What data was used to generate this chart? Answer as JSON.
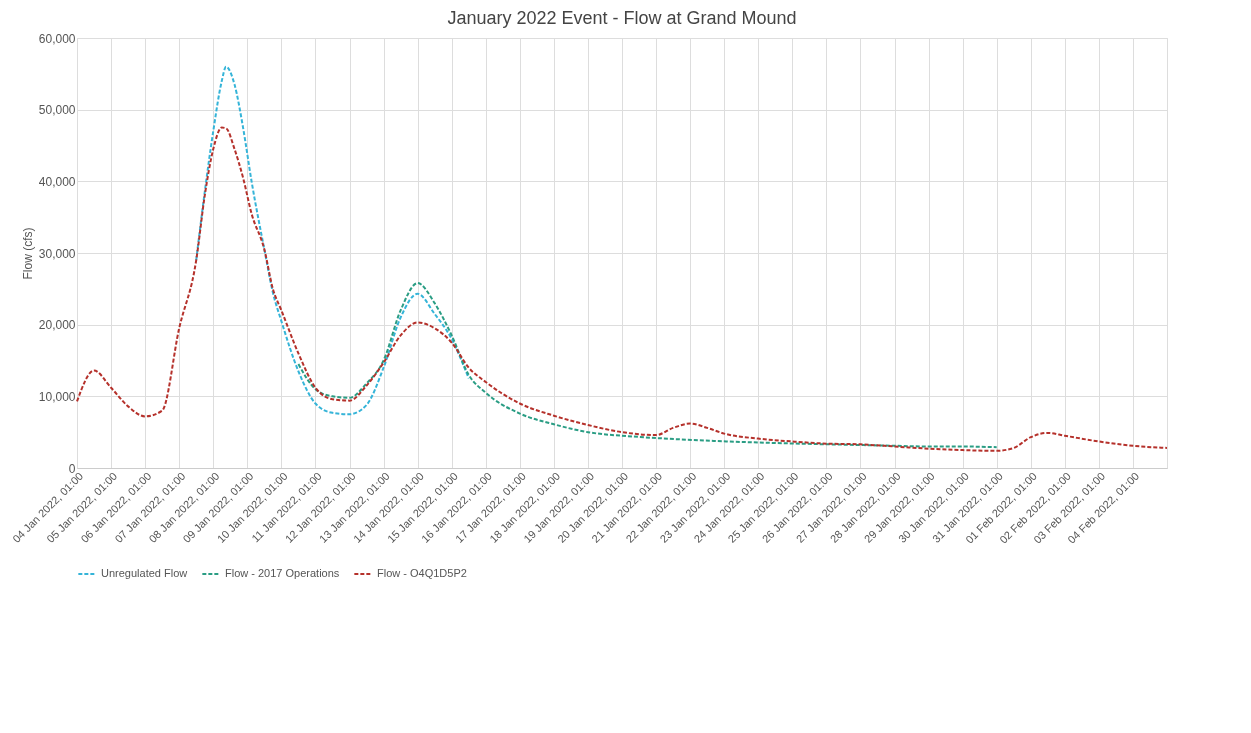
{
  "chart_data": {
    "type": "line",
    "title": "January 2022 Event - Flow at Grand Mound",
    "ylabel": "Flow (cfs)",
    "x": [
      "2022-01-04T01:00",
      "2022-01-04T13:00",
      "2022-01-05T01:00",
      "2022-01-05T13:00",
      "2022-01-06T01:00",
      "2022-01-06T13:00",
      "2022-01-07T01:00",
      "2022-01-07T13:00",
      "2022-01-07T19:00",
      "2022-01-08T01:00",
      "2022-01-08T07:00",
      "2022-01-08T10:00",
      "2022-01-08T16:00",
      "2022-01-08T22:00",
      "2022-01-09T04:00",
      "2022-01-09T13:00",
      "2022-01-09T19:00",
      "2022-01-10T01:00",
      "2022-01-10T13:00",
      "2022-01-11T01:00",
      "2022-01-11T13:00",
      "2022-01-12T01:00",
      "2022-01-12T13:00",
      "2022-01-13T01:00",
      "2022-01-13T13:00",
      "2022-01-14T01:00",
      "2022-01-14T13:00",
      "2022-01-15T01:00",
      "2022-01-15T13:00",
      "2022-01-16T01:00",
      "2022-01-17T01:00",
      "2022-01-18T01:00",
      "2022-01-19T01:00",
      "2022-01-20T01:00",
      "2022-01-21T01:00",
      "2022-01-21T13:00",
      "2022-01-22T01:00",
      "2022-01-22T13:00",
      "2022-01-23T01:00",
      "2022-01-24T01:00",
      "2022-01-25T01:00",
      "2022-01-26T01:00",
      "2022-01-27T01:00",
      "2022-01-28T01:00",
      "2022-01-29T01:00",
      "2022-01-30T01:00",
      "2022-01-31T01:00",
      "2022-01-31T13:00",
      "2022-02-01T01:00",
      "2022-02-01T13:00",
      "2022-02-02T01:00",
      "2022-02-03T01:00",
      "2022-02-04T01:00",
      "2022-02-05T01:00"
    ],
    "series": [
      {
        "name": "Unregulated Flow",
        "color": "#35b4d8",
        "values": [
          null,
          null,
          null,
          null,
          null,
          null,
          null,
          29000,
          38500,
          47000,
          54000,
          56000,
          53500,
          47500,
          40000,
          30500,
          24500,
          20500,
          13500,
          9000,
          7700,
          7500,
          8800,
          14000,
          21000,
          24300,
          21500,
          18000,
          12500,
          null,
          null,
          null,
          null,
          null,
          null,
          null,
          null,
          null,
          null,
          null,
          null,
          null,
          null,
          null,
          null,
          null,
          null,
          null,
          null,
          null,
          null,
          null,
          null,
          null
        ]
      },
      {
        "name": "Flow - 2017 Operations",
        "color": "#2a9d84",
        "values": [
          null,
          null,
          null,
          null,
          null,
          null,
          null,
          null,
          null,
          null,
          null,
          null,
          null,
          null,
          null,
          null,
          null,
          null,
          14500,
          11000,
          10000,
          9800,
          11800,
          15000,
          22000,
          25800,
          23000,
          18500,
          13000,
          10500,
          7600,
          6100,
          5000,
          4500,
          null,
          null,
          null,
          null,
          null,
          null,
          null,
          null,
          null,
          3100,
          3000,
          3000,
          2900,
          null,
          null,
          null,
          null,
          null,
          null,
          null
        ]
      },
      {
        "name": "Flow - O4Q1D5P2",
        "color": "#b5312b",
        "values": [
          9300,
          13600,
          11200,
          8600,
          7200,
          8000,
          19500,
          29000,
          38000,
          44500,
          47500,
          47400,
          44500,
          40500,
          35500,
          30500,
          25000,
          22000,
          16000,
          11200,
          9600,
          9400,
          11500,
          14700,
          18500,
          20300,
          19500,
          17500,
          14000,
          12000,
          9000,
          7300,
          6000,
          5000,
          4600,
          5600,
          6200,
          5600,
          4800,
          4100,
          3700,
          3400,
          3300,
          3000,
          2700,
          2500,
          2400,
          2800,
          4300,
          4900,
          4500,
          3700,
          3100,
          2800
        ]
      }
    ],
    "xlim": [
      "2022-01-04T01:00",
      "2022-02-05T01:00"
    ],
    "xticks": [
      {
        "value": "2022-01-04T01:00",
        "label": "04 Jan 2022, 01:00"
      },
      {
        "value": "2022-01-05T01:00",
        "label": "05 Jan 2022, 01:00"
      },
      {
        "value": "2022-01-06T01:00",
        "label": "06 Jan 2022, 01:00"
      },
      {
        "value": "2022-01-07T01:00",
        "label": "07 Jan 2022, 01:00"
      },
      {
        "value": "2022-01-08T01:00",
        "label": "08 Jan 2022, 01:00"
      },
      {
        "value": "2022-01-09T01:00",
        "label": "09 Jan 2022, 01:00"
      },
      {
        "value": "2022-01-10T01:00",
        "label": "10 Jan 2022, 01:00"
      },
      {
        "value": "2022-01-11T01:00",
        "label": "11 Jan 2022, 01:00"
      },
      {
        "value": "2022-01-12T01:00",
        "label": "12 Jan 2022, 01:00"
      },
      {
        "value": "2022-01-13T01:00",
        "label": "13 Jan 2022, 01:00"
      },
      {
        "value": "2022-01-14T01:00",
        "label": "14 Jan 2022, 01:00"
      },
      {
        "value": "2022-01-15T01:00",
        "label": "15 Jan 2022, 01:00"
      },
      {
        "value": "2022-01-16T01:00",
        "label": "16 Jan 2022, 01:00"
      },
      {
        "value": "2022-01-17T01:00",
        "label": "17 Jan 2022, 01:00"
      },
      {
        "value": "2022-01-18T01:00",
        "label": "18 Jan 2022, 01:00"
      },
      {
        "value": "2022-01-19T01:00",
        "label": "19 Jan 2022, 01:00"
      },
      {
        "value": "2022-01-20T01:00",
        "label": "20 Jan 2022, 01:00"
      },
      {
        "value": "2022-01-21T01:00",
        "label": "21 Jan 2022, 01:00"
      },
      {
        "value": "2022-01-22T01:00",
        "label": "22 Jan 2022, 01:00"
      },
      {
        "value": "2022-01-23T01:00",
        "label": "23 Jan 2022, 01:00"
      },
      {
        "value": "2022-01-24T01:00",
        "label": "24 Jan 2022, 01:00"
      },
      {
        "value": "2022-01-25T01:00",
        "label": "25 Jan 2022, 01:00"
      },
      {
        "value": "2022-01-26T01:00",
        "label": "26 Jan 2022, 01:00"
      },
      {
        "value": "2022-01-27T01:00",
        "label": "27 Jan 2022, 01:00"
      },
      {
        "value": "2022-01-28T01:00",
        "label": "28 Jan 2022, 01:00"
      },
      {
        "value": "2022-01-29T01:00",
        "label": "29 Jan 2022, 01:00"
      },
      {
        "value": "2022-01-30T01:00",
        "label": "30 Jan 2022, 01:00"
      },
      {
        "value": "2022-01-31T01:00",
        "label": "31 Jan 2022, 01:00"
      },
      {
        "value": "2022-02-01T01:00",
        "label": "01 Feb 2022, 01:00"
      },
      {
        "value": "2022-02-02T01:00",
        "label": "02 Feb 2022, 01:00"
      },
      {
        "value": "2022-02-03T01:00",
        "label": "03 Feb 2022, 01:00"
      },
      {
        "value": "2022-02-04T01:00",
        "label": "04 Feb 2022, 01:00"
      },
      {
        "value": "2022-02-05T01:00",
        "label": null
      }
    ],
    "ylim": [
      0,
      60000
    ],
    "yticks": [
      {
        "value": 0,
        "label": "0"
      },
      {
        "value": 10000,
        "label": "10,000"
      },
      {
        "value": 20000,
        "label": "20,000"
      },
      {
        "value": 30000,
        "label": "30,000"
      },
      {
        "value": 40000,
        "label": "40,000"
      },
      {
        "value": 50000,
        "label": "50,000"
      },
      {
        "value": 60000,
        "label": "60,000"
      }
    ],
    "grid": true,
    "legend": "bottom",
    "line_style": "dashed"
  }
}
